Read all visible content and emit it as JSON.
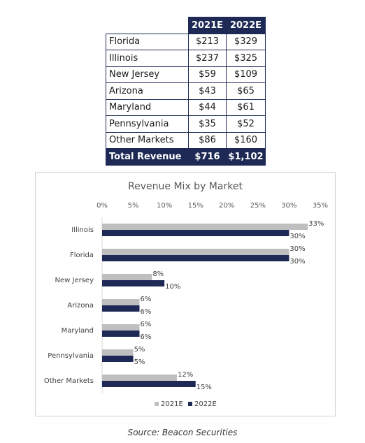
{
  "table": {
    "headers": [
      "",
      "2021E",
      "2022E"
    ],
    "rows": [
      {
        "name": "Florida",
        "v2021": "$213",
        "v2022": "$329"
      },
      {
        "name": "Illinois",
        "v2021": "$237",
        "v2022": "$325"
      },
      {
        "name": "New Jersey",
        "v2021": "$59",
        "v2022": "$109"
      },
      {
        "name": "Arizona",
        "v2021": "$43",
        "v2022": "$65"
      },
      {
        "name": "Maryland",
        "v2021": "$44",
        "v2022": "$61"
      },
      {
        "name": "Pennsylvania",
        "v2021": "$35",
        "v2022": "$52"
      },
      {
        "name": "Other Markets",
        "v2021": "$86",
        "v2022": "$160"
      }
    ],
    "total": {
      "name": "Total Revenue",
      "v2021": "$716",
      "v2022": "$1,102"
    },
    "colors": {
      "header_bg": "#1e2a55"
    }
  },
  "chart_data": {
    "type": "bar",
    "orientation": "horizontal",
    "title": "Revenue Mix by Market",
    "categories": [
      "Illinois",
      "Florida",
      "New Jersey",
      "Arizona",
      "Maryland",
      "Pennsylvania",
      "Other Markets"
    ],
    "series": [
      {
        "name": "2021E",
        "color": "#bfbfbf",
        "values": [
          33,
          30,
          8,
          6,
          6,
          5,
          12
        ],
        "labels": [
          "33%",
          "30%",
          "8%",
          "6%",
          "6%",
          "5%",
          "12%"
        ]
      },
      {
        "name": "2022E",
        "color": "#1e2a55",
        "values": [
          30,
          30,
          10,
          6,
          6,
          5,
          15
        ],
        "labels": [
          "30%",
          "30%",
          "10%",
          "6%",
          "6%",
          "5%",
          "15%"
        ]
      }
    ],
    "xlim": [
      0,
      35
    ],
    "ticks": [
      0,
      5,
      10,
      15,
      20,
      25,
      30,
      35
    ],
    "tick_labels": [
      "0%",
      "5%",
      "10%",
      "15%",
      "20%",
      "25%",
      "30%",
      "35%"
    ],
    "axis_position": "top",
    "grid": false,
    "legend_position": "bottom"
  },
  "source": "Source: Beacon Securities"
}
